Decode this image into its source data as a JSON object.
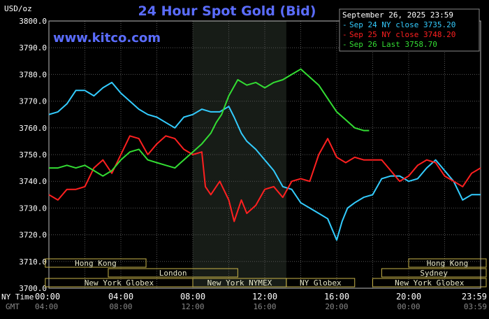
{
  "chart_data": {
    "type": "line",
    "title": "24 Hour Spot Gold (Bid)",
    "brand": "www.kitco.com",
    "units_label": "USD/oz",
    "timestamp": "September 26, 2025 23:59",
    "ylim": [
      3700,
      3800
    ],
    "yticks": [
      "3800.0",
      "3790.0",
      "3780.0",
      "3770.0",
      "3760.0",
      "3750.0",
      "3740.0",
      "3730.0",
      "3720.0",
      "3710.0",
      "3700.0"
    ],
    "x_row_labels": {
      "ny": "NY Time",
      "gmt": "GMT"
    },
    "xticks_ny": [
      "00:00",
      "04:00",
      "08:00",
      "12:00",
      "16:00",
      "20:00",
      "23:59"
    ],
    "xticks_gmt": [
      "04:00",
      "08:00",
      "12:00",
      "16:00",
      "20:00",
      "00:00",
      "03:59"
    ],
    "xticks_hours": [
      0,
      4,
      8,
      12,
      16,
      20,
      24
    ],
    "shaded_range_hours": [
      8,
      13.2
    ],
    "sessions": [
      {
        "label": "Hong Kong",
        "start": -0.2,
        "end": 5.4,
        "row": 0
      },
      {
        "label": "Hong Kong",
        "start": 20.0,
        "end": 24.5,
        "row": 0
      },
      {
        "label": "London",
        "start": 3.3,
        "end": 10.5,
        "row": 1
      },
      {
        "label": "Sydney",
        "start": 18.5,
        "end": 24.5,
        "row": 1
      },
      {
        "label": "New York Globex",
        "start": -0.2,
        "end": 8.0,
        "row": 2
      },
      {
        "label": "New York NYMEX",
        "start": 8.0,
        "end": 13.2,
        "row": 2
      },
      {
        "label": "NY Globex",
        "start": 13.2,
        "end": 17.0,
        "row": 2
      },
      {
        "label": "New York Globex",
        "start": 18.0,
        "end": 24.5,
        "row": 2
      }
    ],
    "series": [
      {
        "name": "Sep 24 NY close 3735.20",
        "color": "#33ccff",
        "points": [
          [
            0,
            3765
          ],
          [
            0.5,
            3766
          ],
          [
            1,
            3769
          ],
          [
            1.5,
            3774
          ],
          [
            2,
            3774
          ],
          [
            2.5,
            3772
          ],
          [
            3,
            3775
          ],
          [
            3.5,
            3777
          ],
          [
            4,
            3773
          ],
          [
            4.5,
            3770
          ],
          [
            5,
            3767
          ],
          [
            5.5,
            3765
          ],
          [
            6,
            3764
          ],
          [
            6.5,
            3762
          ],
          [
            7,
            3760
          ],
          [
            7.5,
            3764
          ],
          [
            8,
            3765
          ],
          [
            8.5,
            3767
          ],
          [
            9,
            3766
          ],
          [
            9.5,
            3766
          ],
          [
            10,
            3768
          ],
          [
            10.3,
            3764
          ],
          [
            10.7,
            3758
          ],
          [
            11,
            3755
          ],
          [
            11.5,
            3752
          ],
          [
            12,
            3748
          ],
          [
            12.5,
            3744
          ],
          [
            13,
            3738
          ],
          [
            13.5,
            3737
          ],
          [
            14,
            3732
          ],
          [
            14.5,
            3730
          ],
          [
            15,
            3728
          ],
          [
            15.5,
            3726
          ],
          [
            16,
            3718
          ],
          [
            16.3,
            3725
          ],
          [
            16.6,
            3730
          ],
          [
            17,
            3732
          ],
          [
            17.5,
            3734
          ],
          [
            18,
            3735
          ],
          [
            18.5,
            3741
          ],
          [
            19,
            3742
          ],
          [
            19.5,
            3742
          ],
          [
            20,
            3740
          ],
          [
            20.5,
            3741
          ],
          [
            21,
            3745
          ],
          [
            21.5,
            3748
          ],
          [
            22,
            3744
          ],
          [
            22.5,
            3740
          ],
          [
            23,
            3733
          ],
          [
            23.5,
            3735
          ],
          [
            24,
            3735
          ]
        ]
      },
      {
        "name": "Sep 25 NY close 3748.20",
        "color": "#ff2020",
        "points": [
          [
            0,
            3735
          ],
          [
            0.5,
            3733
          ],
          [
            1,
            3737
          ],
          [
            1.5,
            3737
          ],
          [
            2,
            3738
          ],
          [
            2.5,
            3745
          ],
          [
            3,
            3748
          ],
          [
            3.5,
            3743
          ],
          [
            4,
            3750
          ],
          [
            4.5,
            3757
          ],
          [
            5,
            3756
          ],
          [
            5.5,
            3750
          ],
          [
            6,
            3754
          ],
          [
            6.5,
            3757
          ],
          [
            7,
            3756
          ],
          [
            7.5,
            3752
          ],
          [
            8,
            3750
          ],
          [
            8.5,
            3751
          ],
          [
            8.7,
            3738
          ],
          [
            9,
            3735
          ],
          [
            9.5,
            3740
          ],
          [
            10,
            3733
          ],
          [
            10.3,
            3725
          ],
          [
            10.7,
            3733
          ],
          [
            11,
            3728
          ],
          [
            11.5,
            3731
          ],
          [
            12,
            3737
          ],
          [
            12.5,
            3738
          ],
          [
            13,
            3734
          ],
          [
            13.5,
            3740
          ],
          [
            14,
            3741
          ],
          [
            14.5,
            3740
          ],
          [
            15,
            3750
          ],
          [
            15.5,
            3756
          ],
          [
            16,
            3749
          ],
          [
            16.5,
            3747
          ],
          [
            17,
            3749
          ],
          [
            17.5,
            3748
          ],
          [
            18,
            3748
          ],
          [
            18.5,
            3748
          ],
          [
            19,
            3744
          ],
          [
            19.5,
            3740
          ],
          [
            20,
            3742
          ],
          [
            20.5,
            3746
          ],
          [
            21,
            3748
          ],
          [
            21.5,
            3747
          ],
          [
            22,
            3742
          ],
          [
            22.5,
            3740
          ],
          [
            23,
            3738
          ],
          [
            23.5,
            3743
          ],
          [
            24,
            3745
          ]
        ]
      },
      {
        "name": "Sep 26 Last 3758.70",
        "color": "#33dd33",
        "points": [
          [
            0,
            3745
          ],
          [
            0.5,
            3745
          ],
          [
            1,
            3746
          ],
          [
            1.5,
            3745
          ],
          [
            2,
            3746
          ],
          [
            2.5,
            3744
          ],
          [
            3,
            3742
          ],
          [
            3.5,
            3744
          ],
          [
            4,
            3748
          ],
          [
            4.5,
            3751
          ],
          [
            5,
            3752
          ],
          [
            5.5,
            3748
          ],
          [
            6,
            3747
          ],
          [
            6.5,
            3746
          ],
          [
            7,
            3745
          ],
          [
            7.5,
            3748
          ],
          [
            8,
            3751
          ],
          [
            8.5,
            3754
          ],
          [
            9,
            3758
          ],
          [
            9.3,
            3762
          ],
          [
            9.6,
            3765
          ],
          [
            10,
            3772
          ],
          [
            10.5,
            3778
          ],
          [
            11,
            3776
          ],
          [
            11.5,
            3777
          ],
          [
            12,
            3775
          ],
          [
            12.5,
            3777
          ],
          [
            13,
            3778
          ],
          [
            13.5,
            3780
          ],
          [
            14,
            3782
          ],
          [
            14.5,
            3779
          ],
          [
            15,
            3776
          ],
          [
            15.5,
            3771
          ],
          [
            16,
            3766
          ],
          [
            16.5,
            3763
          ],
          [
            17,
            3760
          ],
          [
            17.5,
            3759
          ],
          [
            17.8,
            3759
          ]
        ]
      }
    ]
  }
}
